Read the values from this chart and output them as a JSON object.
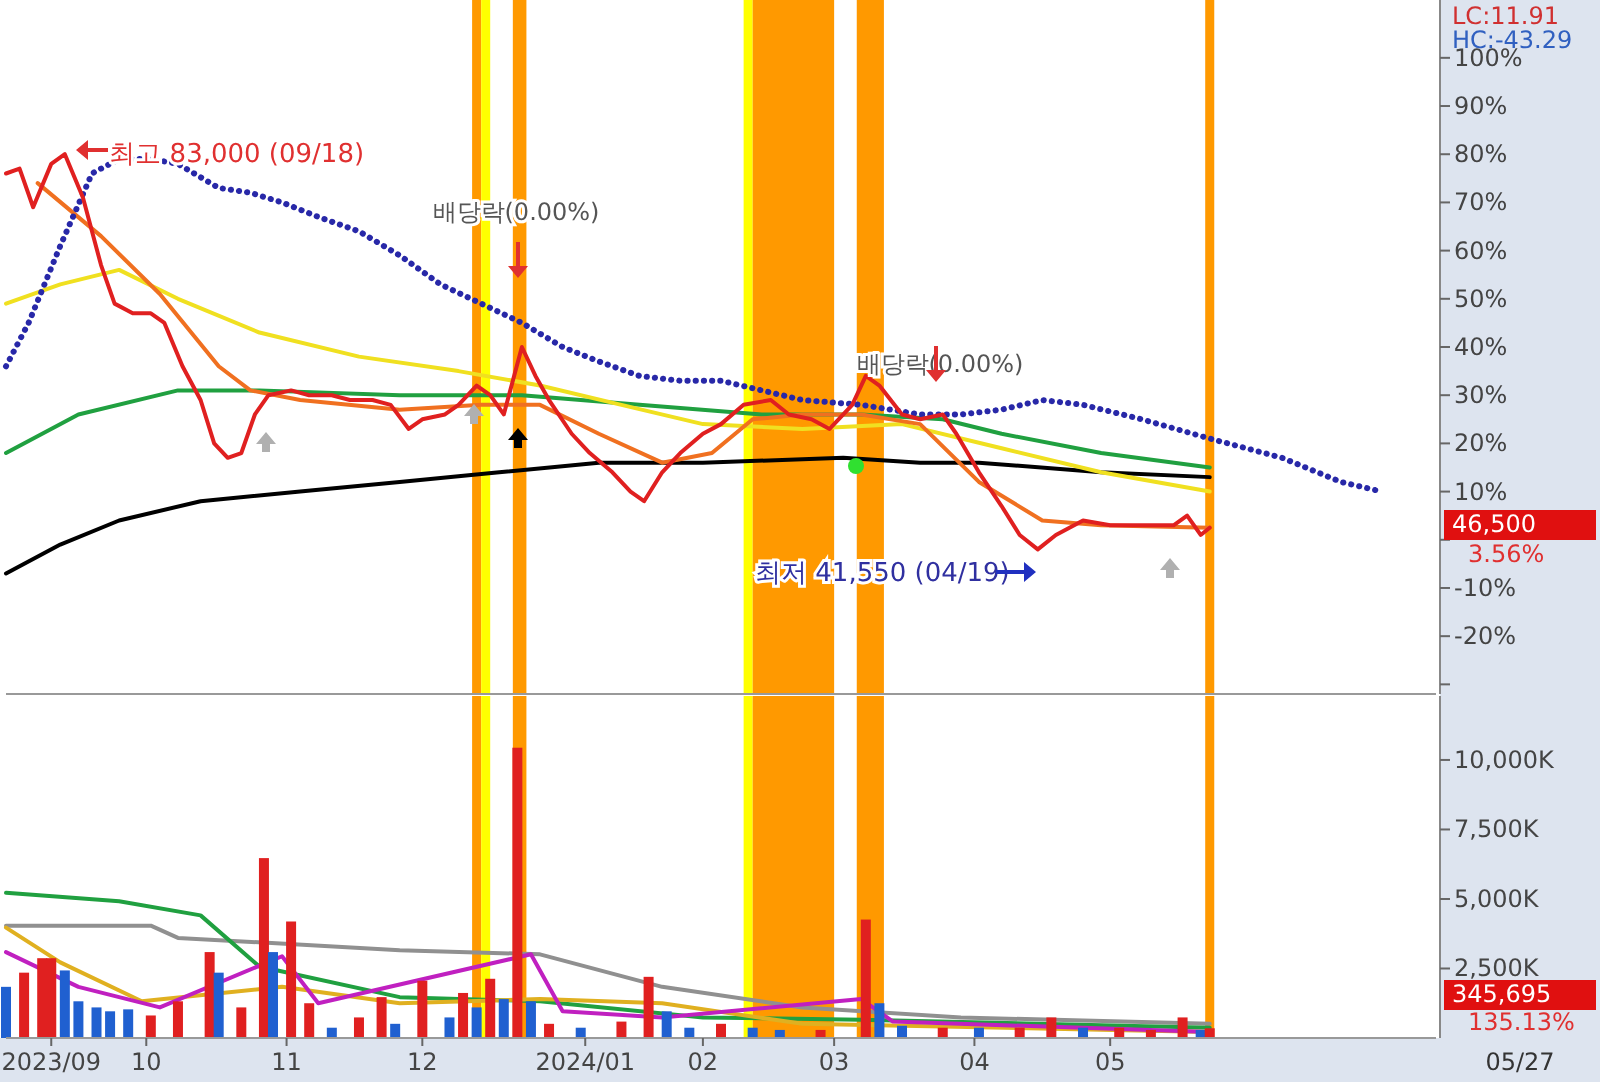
{
  "chart_data": [
    {
      "type": "line",
      "tick_labels": "y",
      "xlim": [
        "2023-09-04",
        "2024-07-16"
      ],
      "ylim": [
        -32,
        112
      ],
      "yticks": [
        {
          "value": 100,
          "label": "100%"
        },
        {
          "value": 90,
          "label": "90%"
        },
        {
          "value": 80,
          "label": "80%"
        },
        {
          "value": 70,
          "label": "70%"
        },
        {
          "value": 60,
          "label": "60%"
        },
        {
          "value": 50,
          "label": "50%"
        },
        {
          "value": 40,
          "label": "40%"
        },
        {
          "value": 30,
          "label": "30%"
        },
        {
          "value": 20,
          "label": "20%"
        },
        {
          "value": 10,
          "label": "10%"
        },
        {
          "value": 0,
          "label": null
        },
        {
          "value": -10,
          "label": "-10%"
        },
        {
          "value": -20,
          "label": "-20%"
        },
        {
          "value": -30,
          "label": null
        }
      ],
      "bands": [
        {
          "axis": "x",
          "from": "2023-12-16",
          "to": "2023-12-18",
          "color": "#ff9900"
        },
        {
          "axis": "x",
          "from": "2023-12-18",
          "to": "2023-12-20",
          "color": "#ffff00"
        },
        {
          "axis": "x",
          "from": "2023-12-25",
          "to": "2023-12-28",
          "color": "#ff9900"
        },
        {
          "axis": "x",
          "from": "2024-02-14",
          "to": "2024-02-16",
          "color": "#ffff00"
        },
        {
          "axis": "x",
          "from": "2024-02-16",
          "to": "2024-03-05",
          "color": "#ff9900"
        },
        {
          "axis": "x",
          "from": "2024-03-10",
          "to": "2024-03-16",
          "color": "#ff9900"
        },
        {
          "axis": "x",
          "from": "2024-05-26",
          "to": "2024-05-28",
          "color": "#ff9900"
        }
      ],
      "series": [
        {
          "color": "#000000",
          "x": [
            "2023-09-04",
            "2023-09-16",
            "2023-09-29",
            "2023-10-17",
            "2023-11-08",
            "2023-11-30",
            "2023-12-22",
            "2024-01-13",
            "2024-02-05",
            "2024-03-07",
            "2024-03-24",
            "2024-04-06",
            "2024-05-03",
            "2024-05-27"
          ],
          "values": [
            -7,
            -1,
            4,
            8,
            10,
            12,
            14,
            16,
            16,
            17,
            16,
            16,
            14,
            13
          ]
        },
        {
          "color": "#20a040",
          "x": [
            "2023-09-04",
            "2023-09-20",
            "2023-10-12",
            "2023-10-30",
            "2023-11-30",
            "2023-12-27",
            "2024-01-22",
            "2024-02-18",
            "2024-03-11",
            "2024-03-29",
            "2024-04-11",
            "2024-05-03",
            "2024-05-27"
          ],
          "values": [
            18,
            26,
            31,
            31,
            30,
            30,
            28,
            26,
            26,
            25,
            22,
            18,
            15
          ]
        },
        {
          "color": "#f0e020",
          "x": [
            "2023-09-04",
            "2023-09-16",
            "2023-09-29",
            "2023-10-12",
            "2023-10-30",
            "2023-11-21",
            "2023-12-13",
            "2023-12-31",
            "2024-01-18",
            "2024-02-05",
            "2024-02-27",
            "2024-03-20",
            "2024-04-11",
            "2024-05-03",
            "2024-05-27"
          ],
          "values": [
            49,
            53,
            56,
            50,
            43,
            38,
            35,
            32,
            28,
            24,
            23,
            24,
            19,
            14,
            10
          ]
        },
        {
          "color": "#f07020",
          "x": [
            "2023-09-11",
            "2023-09-25",
            "2023-10-08",
            "2023-10-21",
            "2023-10-28",
            "2023-11-08",
            "2023-11-30",
            "2023-12-18",
            "2023-12-31",
            "2024-01-13",
            "2024-01-27",
            "2024-02-07",
            "2024-02-16",
            "2024-02-27",
            "2024-03-11",
            "2024-03-24",
            "2024-04-06",
            "2024-04-20",
            "2024-05-03",
            "2024-05-27"
          ],
          "values": [
            74,
            63,
            51,
            36,
            31,
            29,
            27,
            28,
            28,
            22,
            16,
            18,
            25,
            26,
            26,
            24,
            12,
            4,
            3,
            2.5
          ]
        },
        {
          "color": "#2828a8",
          "line_style": "dotted",
          "x": [
            "2023-09-04",
            "2023-09-09",
            "2023-09-16",
            "2023-09-23",
            "2023-09-29",
            "2023-10-06",
            "2023-10-12",
            "2023-10-21",
            "2023-10-28",
            "2023-11-04",
            "2023-11-12",
            "2023-11-21",
            "2023-11-30",
            "2023-12-09",
            "2023-12-18",
            "2023-12-27",
            "2024-01-05",
            "2024-01-13",
            "2024-01-22",
            "2024-01-31",
            "2024-02-09",
            "2024-02-18",
            "2024-02-27",
            "2024-03-11",
            "2024-03-24",
            "2024-04-02",
            "2024-04-11",
            "2024-04-20",
            "2024-04-29",
            "2024-05-12",
            "2024-05-27",
            "2024-06-12",
            "2024-06-25",
            "2024-07-04"
          ],
          "values": [
            36,
            45,
            61,
            76,
            79,
            79,
            78,
            73,
            72,
            70,
            67,
            64,
            59,
            53,
            49,
            45,
            40,
            37,
            34,
            33,
            33,
            31,
            29,
            28,
            26,
            26,
            27,
            29,
            28,
            25,
            21,
            17,
            12,
            10
          ]
        },
        {
          "color": "#e02020",
          "x": [
            "2023-09-04",
            "2023-09-07",
            "2023-09-10",
            "2023-09-14",
            "2023-09-17",
            "2023-09-21",
            "2023-09-25",
            "2023-09-28",
            "2023-10-02",
            "2023-10-06",
            "2023-10-09",
            "2023-10-13",
            "2023-10-17",
            "2023-10-20",
            "2023-10-23",
            "2023-10-26",
            "2023-10-29",
            "2023-11-01",
            "2023-11-06",
            "2023-11-10",
            "2023-11-15",
            "2023-11-19",
            "2023-11-24",
            "2023-11-28",
            "2023-12-02",
            "2023-12-05",
            "2023-12-10",
            "2023-12-13",
            "2023-12-17",
            "2023-12-20",
            "2023-12-23",
            "2023-12-27",
            "2023-12-30",
            "2024-01-02",
            "2024-01-07",
            "2024-01-11",
            "2024-01-16",
            "2024-01-20",
            "2024-01-23",
            "2024-01-27",
            "2024-01-31",
            "2024-02-05",
            "2024-02-09",
            "2024-02-14",
            "2024-02-20",
            "2024-02-24",
            "2024-02-29",
            "2024-03-04",
            "2024-03-09",
            "2024-03-12",
            "2024-03-15",
            "2024-03-20",
            "2024-03-24",
            "2024-03-29",
            "2024-04-01",
            "2024-04-06",
            "2024-04-11",
            "2024-04-15",
            "2024-04-19",
            "2024-04-23",
            "2024-04-29",
            "2024-05-05",
            "2024-05-12",
            "2024-05-19",
            "2024-05-22",
            "2024-05-25",
            "2024-05-27"
          ],
          "values": [
            76,
            77,
            69,
            78,
            80,
            71,
            57,
            49,
            47,
            47,
            45,
            36,
            29,
            20,
            17,
            18,
            26,
            30,
            31,
            30,
            30,
            29,
            29,
            28,
            23,
            25,
            26,
            28,
            32,
            30,
            26,
            40,
            34,
            29,
            22,
            18,
            14,
            10,
            8,
            14,
            18,
            22,
            24,
            28,
            29,
            26,
            25,
            23,
            28,
            34,
            32,
            26,
            25,
            26,
            22,
            14,
            7,
            1,
            -2,
            1,
            4,
            3,
            3,
            3,
            5,
            1,
            2.5
          ]
        }
      ],
      "annotations": [
        "LC:11.91",
        "HC:-43.29",
        {
          "text": "최고 83,000 (09/18)",
          "x": "2023-09-18",
          "y": 80
        },
        "배당락(0.00%)",
        "배당락(0.00%)",
        {
          "text": "최저 41,550 (04/19)",
          "x": "2024-04-19",
          "y": -2
        },
        "46,500",
        "3.56%"
      ]
    },
    {
      "type": "bar",
      "xlim": [
        "2023-09-04",
        "2024-07-16"
      ],
      "ylim": [
        0,
        12300
      ],
      "yticks": [
        {
          "value": 2500,
          "label": "2,500K"
        },
        {
          "value": 5000,
          "label": "5,000K"
        },
        {
          "value": 7500,
          "label": "7,500K"
        },
        {
          "value": 10000,
          "label": "10,000K"
        }
      ],
      "xticks": [
        {
          "value": "2023-09-14",
          "label": "2023/09"
        },
        {
          "value": "2023-10-05",
          "label": "10"
        },
        {
          "value": "2023-11-05",
          "label": "11"
        },
        {
          "value": "2023-12-05",
          "label": "12"
        },
        {
          "value": "2024-01-10",
          "label": "2024/01"
        },
        {
          "value": "2024-02-05",
          "label": "02"
        },
        {
          "value": "2024-03-05",
          "label": "03"
        },
        {
          "value": "2024-04-05",
          "label": "04"
        },
        {
          "value": "2024-05-05",
          "label": "05"
        }
      ],
      "bands": [
        {
          "axis": "x",
          "from": "2023-12-16",
          "to": "2023-12-18",
          "color": "#ff9900"
        },
        {
          "axis": "x",
          "from": "2023-12-18",
          "to": "2023-12-20",
          "color": "#ffff00"
        },
        {
          "axis": "x",
          "from": "2023-12-25",
          "to": "2023-12-28",
          "color": "#ff9900"
        },
        {
          "axis": "x",
          "from": "2024-02-14",
          "to": "2024-02-16",
          "color": "#ffff00"
        },
        {
          "axis": "x",
          "from": "2024-02-16",
          "to": "2024-03-05",
          "color": "#ff9900"
        },
        {
          "axis": "x",
          "from": "2024-03-10",
          "to": "2024-03-16",
          "color": "#ff9900"
        },
        {
          "axis": "x",
          "from": "2024-05-26",
          "to": "2024-05-28",
          "color": "#ff9900"
        }
      ],
      "series": [
        {
          "x": [
            "2023-09-04",
            "2023-09-08",
            "2023-09-12",
            "2023-09-14",
            "2023-09-17",
            "2023-09-20",
            "2023-09-24",
            "2023-09-27",
            "2023-10-01",
            "2023-10-06",
            "2023-10-12",
            "2023-10-19",
            "2023-10-21",
            "2023-10-26",
            "2023-10-31",
            "2023-11-02",
            "2023-11-06",
            "2023-11-10",
            "2023-11-15",
            "2023-11-21",
            "2023-11-26",
            "2023-11-29",
            "2023-12-05",
            "2023-12-11",
            "2023-12-14",
            "2023-12-17",
            "2023-12-20",
            "2023-12-23",
            "2023-12-26",
            "2023-12-29",
            "2024-01-02",
            "2024-01-09",
            "2024-01-18",
            "2024-01-24",
            "2024-01-28",
            "2024-02-02",
            "2024-02-09",
            "2024-02-16",
            "2024-02-22",
            "2024-03-02",
            "2024-03-12",
            "2024-03-15",
            "2024-03-20",
            "2024-03-29",
            "2024-04-06",
            "2024-04-15",
            "2024-04-22",
            "2024-04-29",
            "2024-05-07",
            "2024-05-14",
            "2024-05-21",
            "2024-05-25",
            "2024-05-27"
          ],
          "values": [
            1840,
            2350,
            2870,
            2870,
            2430,
            1320,
            1100,
            960,
            1030,
            810,
            1320,
            3090,
            2350,
            1100,
            6470,
            3090,
            4190,
            1250,
            370,
            740,
            1470,
            510,
            2060,
            740,
            1620,
            1100,
            2130,
            1400,
            10440,
            1320,
            510,
            370,
            590,
            2200,
            960,
            370,
            510,
            370,
            290,
            290,
            4260,
            1250,
            440,
            370,
            370,
            370,
            740,
            370,
            370,
            290,
            740,
            290,
            350
          ],
          "colors": [
            "#2060d0",
            "#e02020",
            "#e02020",
            "#e02020",
            "#2060d0",
            "#2060d0",
            "#2060d0",
            "#2060d0",
            "#2060d0",
            "#e02020",
            "#e02020",
            "#e02020",
            "#2060d0",
            "#e02020",
            "#e02020",
            "#2060d0",
            "#e02020",
            "#e02020",
            "#2060d0",
            "#e02020",
            "#e02020",
            "#2060d0",
            "#e02020",
            "#2060d0",
            "#e02020",
            "#2060d0",
            "#e02020",
            "#2060d0",
            "#e02020",
            "#2060d0",
            "#e02020",
            "#2060d0",
            "#e02020",
            "#e02020",
            "#2060d0",
            "#2060d0",
            "#e02020",
            "#2060d0",
            "#2060d0",
            "#e02020",
            "#e02020",
            "#2060d0",
            "#2060d0",
            "#e02020",
            "#2060d0",
            "#e02020",
            "#e02020",
            "#2060d0",
            "#e02020",
            "#e02020",
            "#e02020",
            "#2060d0",
            "#e02020"
          ]
        },
        {
          "type": "line",
          "color": "#909090",
          "x": [
            "2023-09-04",
            "2023-10-06",
            "2023-10-12",
            "2023-11-30",
            "2023-12-31",
            "2024-01-27",
            "2024-02-27",
            "2024-04-02",
            "2024-05-27"
          ],
          "values": [
            4040,
            4040,
            3600,
            3160,
            3010,
            1840,
            1100,
            740,
            510
          ]
        },
        {
          "type": "line",
          "color": "#20a040",
          "x": [
            "2023-09-04",
            "2023-09-29",
            "2023-10-17",
            "2023-10-30",
            "2023-11-30",
            "2023-12-31",
            "2024-02-05",
            "2024-03-11",
            "2024-05-27"
          ],
          "values": [
            5220,
            4920,
            4410,
            2570,
            1470,
            1320,
            740,
            660,
            370
          ]
        },
        {
          "type": "line",
          "color": "#e0b020",
          "x": [
            "2023-09-04",
            "2023-09-16",
            "2023-10-04",
            "2023-11-04",
            "2023-11-30",
            "2023-12-31",
            "2024-01-27",
            "2024-02-27",
            "2024-05-27"
          ],
          "values": [
            3970,
            2720,
            1320,
            1840,
            1250,
            1400,
            1250,
            510,
            220
          ]
        },
        {
          "type": "line",
          "color": "#c020c0",
          "x": [
            "2023-09-04",
            "2023-09-20",
            "2023-10-08",
            "2023-11-04",
            "2023-11-12",
            "2023-12-29",
            "2024-01-05",
            "2024-01-27",
            "2024-03-11",
            "2024-03-18",
            "2024-05-27"
          ],
          "values": [
            3090,
            1840,
            1100,
            2940,
            1250,
            3010,
            960,
            740,
            1400,
            590,
            220
          ]
        }
      ],
      "annotations": [
        "345,695",
        "135.13%",
        "05/27"
      ]
    }
  ]
}
